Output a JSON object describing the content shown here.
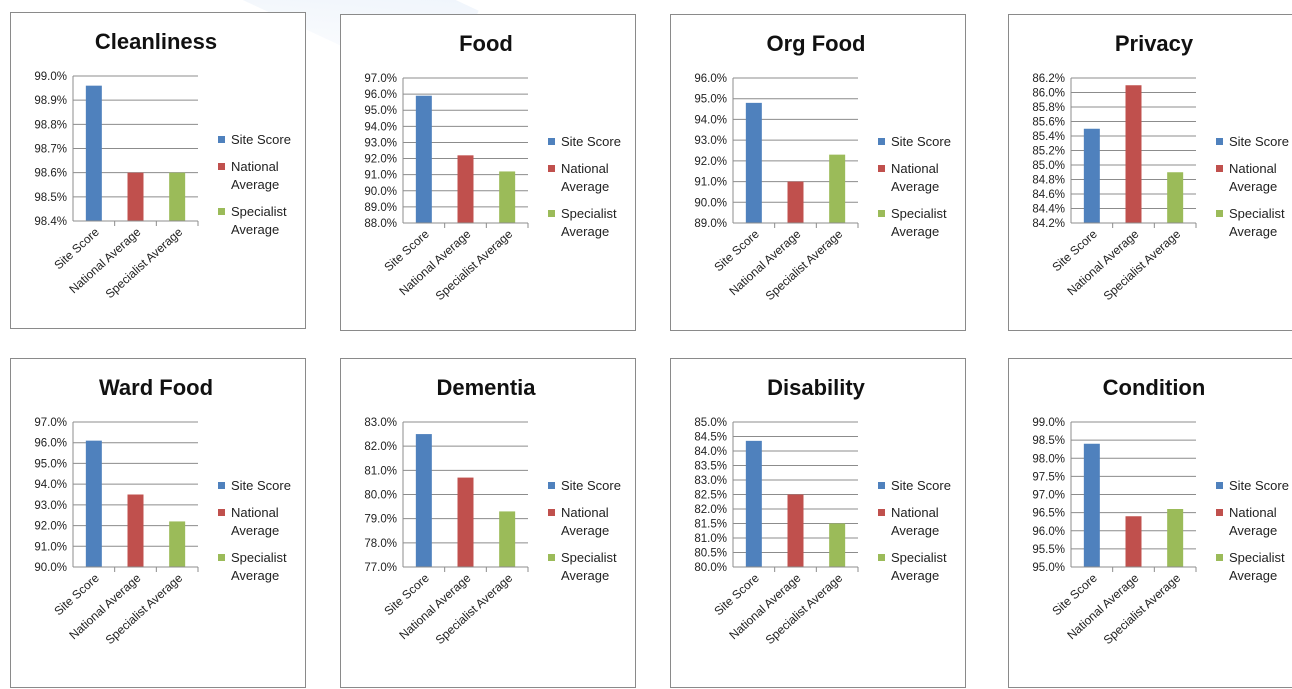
{
  "colors": {
    "site": "#4F81BD",
    "national": "#C0504D",
    "specialist": "#9BBB59",
    "grid": "#8c8c8c",
    "axis": "#8c8c8c"
  },
  "legend": [
    {
      "label": "Site Score",
      "color_key": "site"
    },
    {
      "label": "National Average",
      "color_key": "national"
    },
    {
      "label": "Specialist Average",
      "color_key": "specialist"
    }
  ],
  "chart_data": [
    {
      "type": "bar",
      "title": "Cleanliness",
      "categories": [
        "Site Score",
        "National Average",
        "Specialist Average"
      ],
      "values": [
        98.96,
        98.6,
        98.6
      ],
      "ylim": [
        98.4,
        99.0
      ],
      "ystep": 0.1,
      "decimals": 1,
      "tick_labels": [
        "98.4%",
        "98.5%",
        "98.6%",
        "98.7%",
        "98.8%",
        "98.9%",
        "99.0%"
      ],
      "grid": true,
      "legend": "right"
    },
    {
      "type": "bar",
      "title": "Food",
      "categories": [
        "Site Score",
        "National Average",
        "Specialist Average"
      ],
      "values": [
        95.9,
        92.2,
        91.2
      ],
      "ylim": [
        88.0,
        97.0
      ],
      "ystep": 1,
      "decimals": 1,
      "tick_labels": [
        "88.0%",
        "89.0%",
        "90.0%",
        "91.0%",
        "92.0%",
        "93.0%",
        "94.0%",
        "95.0%",
        "96.0%",
        "97.0%"
      ],
      "grid": true,
      "legend": "right"
    },
    {
      "type": "bar",
      "title": "Org Food",
      "categories": [
        "Site Score",
        "National Average",
        "Specialist Average"
      ],
      "values": [
        94.8,
        91.0,
        92.3
      ],
      "ylim": [
        89.0,
        96.0
      ],
      "ystep": 1,
      "decimals": 1,
      "tick_labels": [
        "89.0%",
        "90.0%",
        "91.0%",
        "92.0%",
        "93.0%",
        "94.0%",
        "95.0%",
        "96.0%"
      ],
      "grid": true,
      "legend": "right"
    },
    {
      "type": "bar",
      "title": "Privacy",
      "categories": [
        "Site Score",
        "National Average",
        "Specialist Average"
      ],
      "values": [
        85.5,
        86.1,
        84.9
      ],
      "ylim": [
        84.2,
        86.2
      ],
      "ystep": 0.2,
      "decimals": 1,
      "tick_labels": [
        "84.2%",
        "84.4%",
        "84.6%",
        "84.8%",
        "85.0%",
        "85.2%",
        "85.4%",
        "85.6%",
        "85.8%",
        "86.0%",
        "86.2%"
      ],
      "grid": true,
      "legend": "right"
    },
    {
      "type": "bar",
      "title": "Ward Food",
      "categories": [
        "Site Score",
        "National Average",
        "Specialist Average"
      ],
      "values": [
        96.1,
        93.5,
        92.2
      ],
      "ylim": [
        90.0,
        97.0
      ],
      "ystep": 1,
      "decimals": 1,
      "tick_labels": [
        "90.0%",
        "91.0%",
        "92.0%",
        "93.0%",
        "94.0%",
        "95.0%",
        "96.0%",
        "97.0%"
      ],
      "grid": true,
      "legend": "right"
    },
    {
      "type": "bar",
      "title": "Dementia",
      "categories": [
        "Site Score",
        "National Average",
        "Specialist Average"
      ],
      "values": [
        82.5,
        80.7,
        79.3
      ],
      "ylim": [
        77.0,
        83.0
      ],
      "ystep": 1,
      "decimals": 1,
      "tick_labels": [
        "77.0%",
        "78.0%",
        "79.0%",
        "80.0%",
        "81.0%",
        "82.0%",
        "83.0%"
      ],
      "grid": true,
      "legend": "right"
    },
    {
      "type": "bar",
      "title": "Disability",
      "categories": [
        "Site Score",
        "National Average",
        "Specialist Average"
      ],
      "values": [
        84.35,
        82.5,
        81.5
      ],
      "ylim": [
        80.0,
        85.0
      ],
      "ystep": 0.5,
      "decimals": 1,
      "tick_labels": [
        "80.0%",
        "80.5%",
        "81.0%",
        "81.5%",
        "82.0%",
        "82.5%",
        "83.0%",
        "83.5%",
        "84.0%",
        "84.5%",
        "85.0%"
      ],
      "grid": true,
      "legend": "right"
    },
    {
      "type": "bar",
      "title": "Condition",
      "categories": [
        "Site Score",
        "National Average",
        "Specialist Average"
      ],
      "values": [
        98.4,
        96.4,
        96.6
      ],
      "ylim": [
        95.0,
        99.0
      ],
      "ystep": 0.5,
      "decimals": 1,
      "tick_labels": [
        "95.0%",
        "95.5%",
        "96.0%",
        "96.5%",
        "97.0%",
        "97.5%",
        "98.0%",
        "98.5%",
        "99.0%"
      ],
      "grid": true,
      "legend": "right"
    }
  ]
}
